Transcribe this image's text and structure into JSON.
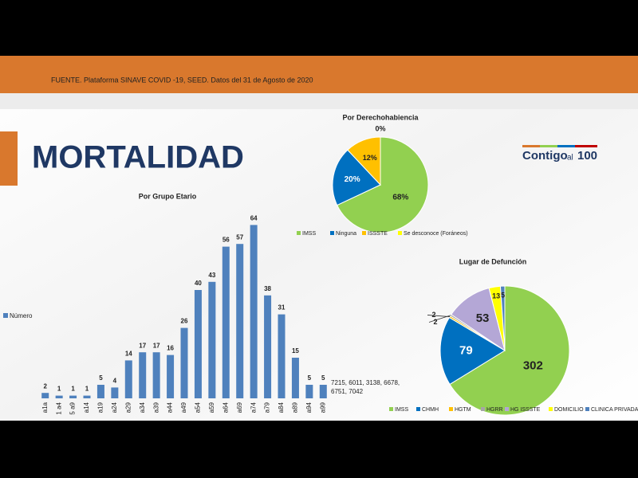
{
  "header": {
    "source": "FUENTE. Plataforma SINAVE COVID -19, SEED. Datos del 31 de Agosto de 2020",
    "title": "MORTALIDAD",
    "logo": [
      "Contigo",
      "al",
      "100"
    ]
  },
  "chart_data": [
    {
      "type": "bar",
      "title": "Por Grupo Etario",
      "categories": [
        "a1a",
        "1 a4",
        "5 a9",
        "a14",
        "a19",
        "a24",
        "a29",
        "a34",
        "a39",
        "a44",
        "a49",
        "a54",
        "a59",
        "a64",
        "a69",
        "a74",
        "a79",
        "a84",
        "a89",
        "a94",
        "a99"
      ],
      "series": [
        {
          "name": "Número",
          "color": "#4f81bd",
          "values": [
            2,
            1,
            1,
            1,
            5,
            4,
            14,
            17,
            17,
            16,
            26,
            40,
            43,
            56,
            57,
            64,
            38,
            31,
            15,
            5,
            5
          ]
        }
      ],
      "ylim": [
        0,
        70
      ],
      "annotation": [
        "7215, 6011, 3138, 6678,",
        "6751, 7042"
      ]
    },
    {
      "type": "pie",
      "title": "Por Derechohabiencia",
      "categories": [
        "IMSS",
        "Ninguna",
        "ISSSTE",
        "Se desconoce (Foráneos)"
      ],
      "values": [
        68,
        20,
        12,
        0
      ],
      "value_labels": [
        "68%",
        "20%",
        "12%",
        "0%"
      ],
      "colors": [
        "#92d050",
        "#0070c0",
        "#ffc000",
        "#ffff00"
      ]
    },
    {
      "type": "pie",
      "title": "Lugar de Defunción",
      "categories": [
        "IMSS",
        "CHMH",
        "HGTM",
        "HGRR",
        "HG ISSSTE",
        "DOMICILIO",
        "CLINICA PRIVADA"
      ],
      "values": [
        302,
        79,
        2,
        2,
        53,
        13,
        5
      ],
      "colors": [
        "#92d050",
        "#0070c0",
        "#ffc000",
        "#a6a6a6",
        "#b4a7d6",
        "#ffff00",
        "#4f81bd"
      ]
    }
  ]
}
